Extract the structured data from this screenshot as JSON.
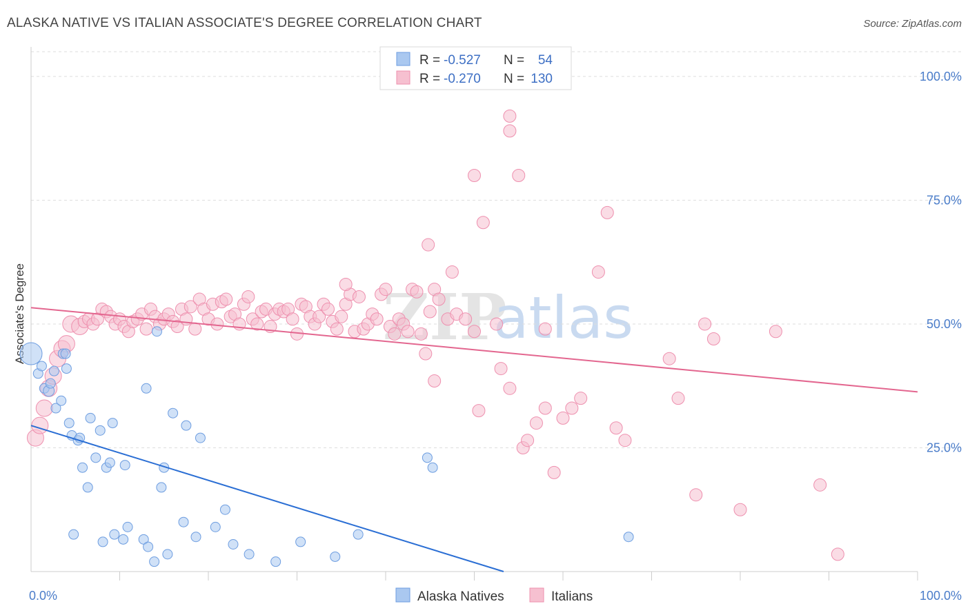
{
  "title": "ALASKA NATIVE VS ITALIAN ASSOCIATE'S DEGREE CORRELATION CHART",
  "source": "Source: ZipAtlas.com",
  "watermark": {
    "zip": "ZIP",
    "atlas": "atlas"
  },
  "colors": {
    "blue_fill": "#aac8f0",
    "blue_stroke": "#6d9de0",
    "blue_line": "#2a6ed4",
    "pink_fill": "#f6c0d0",
    "pink_stroke": "#ee8fae",
    "pink_line": "#e3668f",
    "grid": "#dddddd",
    "tick_text": "#4a7cc9"
  },
  "legend": {
    "rows": [
      {
        "r_label": "R = ",
        "r_value": "-0.527",
        "n_label": "N = ",
        "n_value": "54"
      },
      {
        "r_label": "R = ",
        "r_value": "-0.270",
        "n_label": "N = ",
        "n_value": "130"
      }
    ]
  },
  "bottom_legend": [
    "Alaska Natives",
    "Italians"
  ],
  "chart_data": {
    "type": "scatter",
    "ylabel": "Associate's Degree",
    "xlim": [
      0,
      100
    ],
    "ylim": [
      0,
      105
    ],
    "x_tick_labels": [
      "0.0%",
      "100.0%"
    ],
    "y_ticks": [
      {
        "value": 25,
        "label": "25.0%"
      },
      {
        "value": 50,
        "label": "50.0%"
      },
      {
        "value": 75,
        "label": "75.0%"
      },
      {
        "value": 100,
        "label": "100.0%"
      }
    ],
    "grid": true,
    "legend_position": "top-center",
    "series": [
      {
        "name": "Alaska Natives",
        "trend": {
          "x0": 0,
          "y0": 29.5,
          "x1": 53.3,
          "y1": 0
        },
        "points": [
          [
            0.0,
            44,
            16
          ],
          [
            0.8,
            40,
            7
          ],
          [
            1.5,
            37,
            7
          ],
          [
            2.0,
            36.5,
            8
          ],
          [
            2.2,
            38,
            7
          ],
          [
            2.8,
            33,
            7
          ],
          [
            3.4,
            34.5,
            7
          ],
          [
            3.6,
            44,
            7
          ],
          [
            3.9,
            44,
            7
          ],
          [
            4.0,
            41,
            7
          ],
          [
            4.3,
            30,
            7
          ],
          [
            4.6,
            27.5,
            7
          ],
          [
            5.3,
            26.5,
            7
          ],
          [
            5.5,
            27,
            7
          ],
          [
            4.8,
            7.5,
            7
          ],
          [
            5.8,
            21,
            7
          ],
          [
            6.4,
            17,
            7
          ],
          [
            6.7,
            31,
            7
          ],
          [
            7.3,
            23,
            7
          ],
          [
            7.8,
            28.5,
            7
          ],
          [
            8.1,
            6,
            7
          ],
          [
            8.5,
            21,
            7
          ],
          [
            8.9,
            22,
            7
          ],
          [
            9.2,
            30,
            7
          ],
          [
            9.4,
            7.5,
            7
          ],
          [
            10.4,
            6.5,
            7
          ],
          [
            10.6,
            21.5,
            7
          ],
          [
            10.9,
            9,
            7
          ],
          [
            12.7,
            6.5,
            7
          ],
          [
            13.2,
            5,
            7
          ],
          [
            13.9,
            2,
            7
          ],
          [
            14.2,
            48.5,
            7
          ],
          [
            14.7,
            17,
            7
          ],
          [
            15.0,
            21,
            7
          ],
          [
            13.0,
            37,
            7
          ],
          [
            15.4,
            3.5,
            7
          ],
          [
            16.0,
            32,
            7
          ],
          [
            17.2,
            10,
            7
          ],
          [
            17.5,
            29.5,
            7
          ],
          [
            18.6,
            7,
            7
          ],
          [
            19.1,
            27,
            7
          ],
          [
            20.8,
            9,
            7
          ],
          [
            21.9,
            12.5,
            7
          ],
          [
            22.8,
            5.5,
            7
          ],
          [
            24.6,
            3.5,
            7
          ],
          [
            27.6,
            2,
            7
          ],
          [
            30.4,
            6,
            7
          ],
          [
            34.3,
            3,
            7
          ],
          [
            36.9,
            7.5,
            7
          ],
          [
            44.7,
            23,
            7
          ],
          [
            45.3,
            21,
            7
          ],
          [
            67.4,
            7,
            7
          ],
          [
            2.6,
            40.5,
            7
          ],
          [
            1.2,
            41.5,
            7
          ]
        ]
      },
      {
        "name": "Italians",
        "trend": {
          "x0": 0,
          "y0": 53.3,
          "x1": 100,
          "y1": 36.3
        },
        "points": [
          [
            0.5,
            27,
            12
          ],
          [
            1.0,
            29.5,
            12
          ],
          [
            1.5,
            33,
            12
          ],
          [
            2.0,
            37,
            12
          ],
          [
            2.5,
            39.5,
            12
          ],
          [
            3.0,
            43,
            12
          ],
          [
            3.5,
            45,
            12
          ],
          [
            4.0,
            46,
            12
          ],
          [
            4.5,
            50,
            12
          ],
          [
            5.5,
            49.5,
            12
          ],
          [
            6.0,
            50.5,
            9
          ],
          [
            6.5,
            51,
            9
          ],
          [
            7.0,
            50,
            9
          ],
          [
            7.5,
            51,
            9
          ],
          [
            8.0,
            53,
            9
          ],
          [
            8.5,
            52.5,
            9
          ],
          [
            9.0,
            51.5,
            9
          ],
          [
            9.5,
            50,
            9
          ],
          [
            10.0,
            51,
            9
          ],
          [
            10.5,
            49.5,
            9
          ],
          [
            11.0,
            48.5,
            9
          ],
          [
            11.5,
            50.5,
            9
          ],
          [
            12.0,
            51,
            9
          ],
          [
            12.5,
            52,
            9
          ],
          [
            13.0,
            49,
            9
          ],
          [
            13.5,
            53,
            9
          ],
          [
            14.0,
            51.5,
            9
          ],
          [
            14.5,
            50,
            9
          ],
          [
            15.0,
            51,
            9
          ],
          [
            15.5,
            52,
            9
          ],
          [
            16.0,
            50.5,
            9
          ],
          [
            16.5,
            49.5,
            9
          ],
          [
            17.0,
            53,
            9
          ],
          [
            17.5,
            51,
            9
          ],
          [
            18.0,
            53.5,
            9
          ],
          [
            18.5,
            49,
            9
          ],
          [
            19.0,
            55,
            9
          ],
          [
            19.5,
            53,
            9
          ],
          [
            20.0,
            51,
            9
          ],
          [
            20.5,
            54,
            9
          ],
          [
            21.0,
            50,
            9
          ],
          [
            21.5,
            54.5,
            9
          ],
          [
            22.0,
            55,
            9
          ],
          [
            22.5,
            51.5,
            9
          ],
          [
            23.0,
            52,
            9
          ],
          [
            23.5,
            50,
            9
          ],
          [
            24.0,
            54,
            9
          ],
          [
            24.5,
            55.5,
            9
          ],
          [
            25.0,
            51,
            9
          ],
          [
            25.5,
            50,
            9
          ],
          [
            26.0,
            52.5,
            9
          ],
          [
            26.5,
            53,
            9
          ],
          [
            27.0,
            49.5,
            9
          ],
          [
            27.5,
            52,
            9
          ],
          [
            28.0,
            53,
            9
          ],
          [
            28.5,
            52.5,
            9
          ],
          [
            29.0,
            53,
            9
          ],
          [
            29.5,
            51,
            9
          ],
          [
            30.0,
            48,
            9
          ],
          [
            30.5,
            54,
            9
          ],
          [
            31.0,
            53.5,
            9
          ],
          [
            31.5,
            51.5,
            9
          ],
          [
            32.0,
            50,
            9
          ],
          [
            32.5,
            51.5,
            9
          ],
          [
            33.0,
            54,
            9
          ],
          [
            33.5,
            53,
            9
          ],
          [
            34.0,
            50.5,
            9
          ],
          [
            34.5,
            49,
            9
          ],
          [
            35.0,
            51.5,
            9
          ],
          [
            35.5,
            54,
            9
          ],
          [
            36.0,
            56,
            9
          ],
          [
            36.5,
            48.5,
            9
          ],
          [
            37.0,
            55.5,
            9
          ],
          [
            37.5,
            49,
            9
          ],
          [
            38.0,
            50,
            9
          ],
          [
            38.5,
            52,
            9
          ],
          [
            39.0,
            51,
            9
          ],
          [
            39.5,
            56,
            9
          ],
          [
            40.0,
            57,
            9
          ],
          [
            40.5,
            49.5,
            9
          ],
          [
            41.0,
            48,
            9
          ],
          [
            41.5,
            51,
            9
          ],
          [
            42.0,
            50,
            9
          ],
          [
            42.5,
            48.5,
            9
          ],
          [
            43.0,
            57,
            9
          ],
          [
            43.5,
            56.5,
            9
          ],
          [
            44.0,
            48,
            9
          ],
          [
            44.5,
            44,
            9
          ],
          [
            45.0,
            52.5,
            9
          ],
          [
            45.5,
            57,
            9
          ],
          [
            46.0,
            55,
            9
          ],
          [
            47.0,
            51,
            9
          ],
          [
            48.0,
            52,
            9
          ],
          [
            49.0,
            51,
            9
          ],
          [
            50.0,
            48.5,
            9
          ],
          [
            35.5,
            58,
            9
          ],
          [
            52.5,
            50,
            9
          ],
          [
            53.0,
            41,
            9
          ],
          [
            54.0,
            37,
            9
          ],
          [
            55.5,
            25,
            9
          ],
          [
            56.0,
            26.5,
            9
          ],
          [
            57.0,
            30,
            9
          ],
          [
            58.0,
            33,
            9
          ],
          [
            47.5,
            60.5,
            9
          ],
          [
            45.5,
            38.5,
            9
          ],
          [
            44.8,
            66,
            9
          ],
          [
            59.0,
            20,
            9
          ],
          [
            61.0,
            33,
            9
          ],
          [
            62.0,
            35,
            9
          ],
          [
            64.0,
            60.5,
            9
          ],
          [
            65.0,
            72.5,
            9
          ],
          [
            51.0,
            70.5,
            9
          ],
          [
            50.0,
            80,
            9
          ],
          [
            55.0,
            80,
            9
          ],
          [
            54.0,
            89,
            9
          ],
          [
            54.0,
            92,
            9
          ],
          [
            58.0,
            49,
            9
          ],
          [
            60.0,
            31,
            9
          ],
          [
            66.0,
            29,
            9
          ],
          [
            67.0,
            26.5,
            9
          ],
          [
            72.0,
            43,
            9
          ],
          [
            73.0,
            35,
            9
          ],
          [
            75.0,
            15.5,
            9
          ],
          [
            76.0,
            50,
            9
          ],
          [
            77.0,
            47,
            9
          ],
          [
            80.0,
            12.5,
            9
          ],
          [
            84.0,
            48.5,
            9
          ],
          [
            89.0,
            17.5,
            9
          ],
          [
            91.0,
            3.5,
            9
          ],
          [
            50.5,
            32.5,
            9
          ]
        ]
      }
    ]
  }
}
